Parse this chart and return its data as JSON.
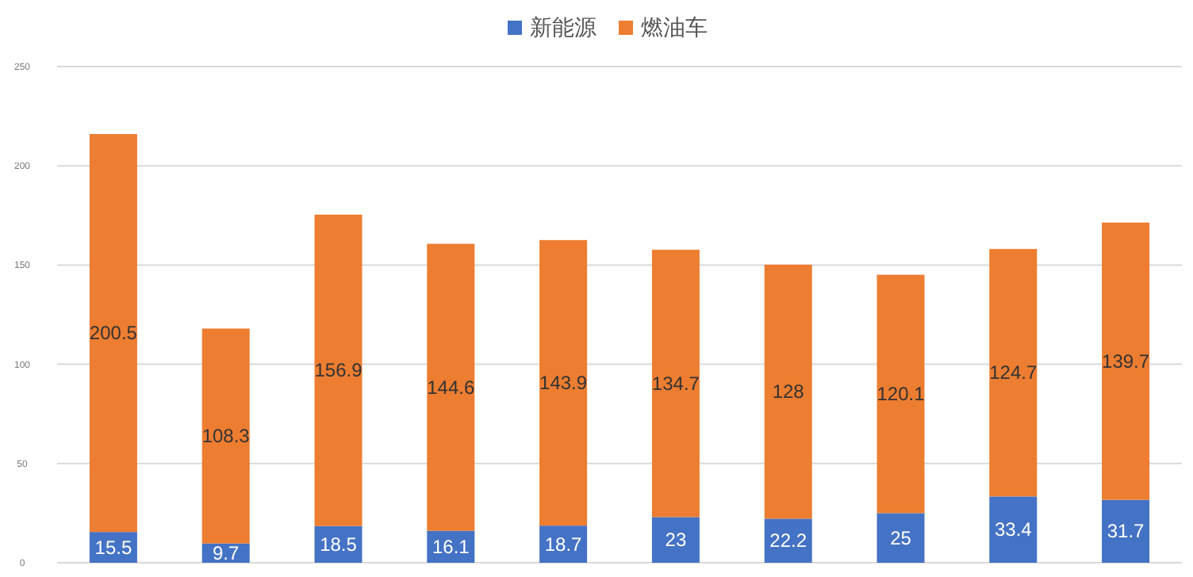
{
  "chart_data": {
    "type": "bar",
    "stacked": true,
    "categories": [
      null,
      null,
      null,
      null,
      null,
      null,
      null,
      null,
      null,
      null
    ],
    "series": [
      {
        "name": "新能源",
        "color": "#4472c4",
        "values": [
          15.5,
          9.7,
          18.5,
          16.1,
          18.7,
          23,
          22.2,
          25,
          33.4,
          31.7
        ]
      },
      {
        "name": "燃油车",
        "color": "#ed7d31",
        "values": [
          200.5,
          108.3,
          156.9,
          144.6,
          143.9,
          134.7,
          128,
          120.1,
          124.7,
          139.7
        ]
      }
    ],
    "data_labels": true,
    "ylim": [
      0,
      250
    ],
    "yticks": [
      0,
      50,
      100,
      150,
      200,
      250
    ],
    "grid": "y",
    "legend": "top"
  }
}
